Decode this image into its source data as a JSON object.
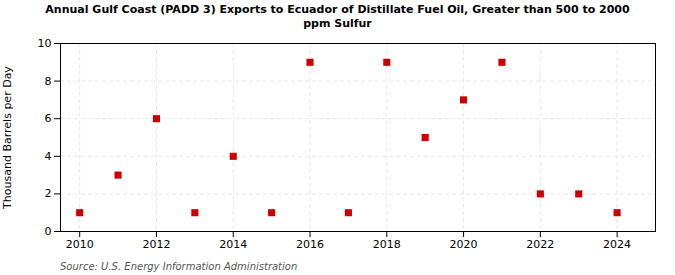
{
  "chart_data": {
    "type": "scatter",
    "title": "Annual Gulf Coast (PADD 3) Exports to Ecuador of Distillate Fuel Oil, Greater than 500 to 2000\nppm Sulfur",
    "ylabel": "Thousand Barrels per Day",
    "source": "Source: U.S. Energy Information Administration",
    "x": [
      2010,
      2011,
      2012,
      2013,
      2014,
      2015,
      2016,
      2017,
      2018,
      2019,
      2020,
      2021,
      2022,
      2023,
      2024
    ],
    "values": [
      1,
      3,
      6,
      1,
      4,
      1,
      9,
      1,
      9,
      5,
      7,
      9,
      2,
      2,
      1
    ],
    "color": "#cc0000",
    "marker": "square",
    "xlim": [
      2009.5,
      2025.0
    ],
    "ylim": [
      0,
      10
    ],
    "xticks": [
      2010,
      2012,
      2014,
      2016,
      2018,
      2020,
      2022,
      2024
    ],
    "yticks": [
      0,
      2,
      4,
      6,
      8,
      10
    ],
    "grid": true
  }
}
